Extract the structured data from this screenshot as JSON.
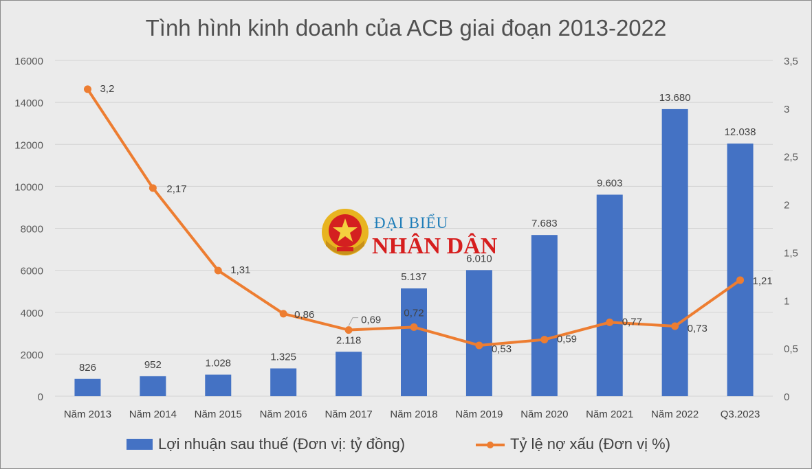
{
  "chart_data": {
    "type": "bar+line",
    "title": "Tình hình kinh doanh của ACB giai đoạn 2013-2022",
    "categories": [
      "Năm 2013",
      "Năm 2014",
      "Năm 2015",
      "Năm 2016",
      "Năm 2017",
      "Năm 2018",
      "Năm 2019",
      "Năm 2020",
      "Năm 2021",
      "Năm 2022",
      "Q3.2023"
    ],
    "series": [
      {
        "name": "Lợi nhuận sau thuế (Đơn vị: tỷ đồng)",
        "type": "bar",
        "axis": "left",
        "color": "#4472c4",
        "values": [
          826,
          952,
          1028,
          1325,
          2118,
          5137,
          6010,
          7683,
          9603,
          13680,
          12038
        ],
        "labels": [
          "826",
          "952",
          "1.028",
          "1.325",
          "2.118",
          "5.137",
          "6.010",
          "7.683",
          "9.603",
          "13.680",
          "12.038"
        ]
      },
      {
        "name": "Tỷ lệ nợ xấu (Đơn vị %)",
        "type": "line",
        "axis": "right",
        "color": "#ed7d31",
        "values": [
          3.2,
          2.17,
          1.31,
          0.86,
          0.69,
          0.72,
          0.53,
          0.59,
          0.77,
          0.73,
          1.21
        ],
        "labels": [
          "3,2",
          "2,17",
          "1,31",
          "0,86",
          "0,69",
          "0,72",
          "0,53",
          "0,59",
          "0,77",
          "0,73",
          "1,21"
        ]
      }
    ],
    "ylim_left": [
      0,
      16000
    ],
    "yticks_left": [
      "0",
      "2000",
      "4000",
      "6000",
      "8000",
      "10000",
      "12000",
      "14000",
      "16000"
    ],
    "ylim_right": [
      0,
      3.5
    ],
    "yticks_right": [
      "0",
      "0,5",
      "1",
      "1,5",
      "2",
      "2,5",
      "3",
      "3,5"
    ],
    "grid": true,
    "legend": "bottom"
  },
  "watermark": {
    "line1": "ĐẠI BIỂU",
    "line2": "NHÂN DÂN"
  }
}
